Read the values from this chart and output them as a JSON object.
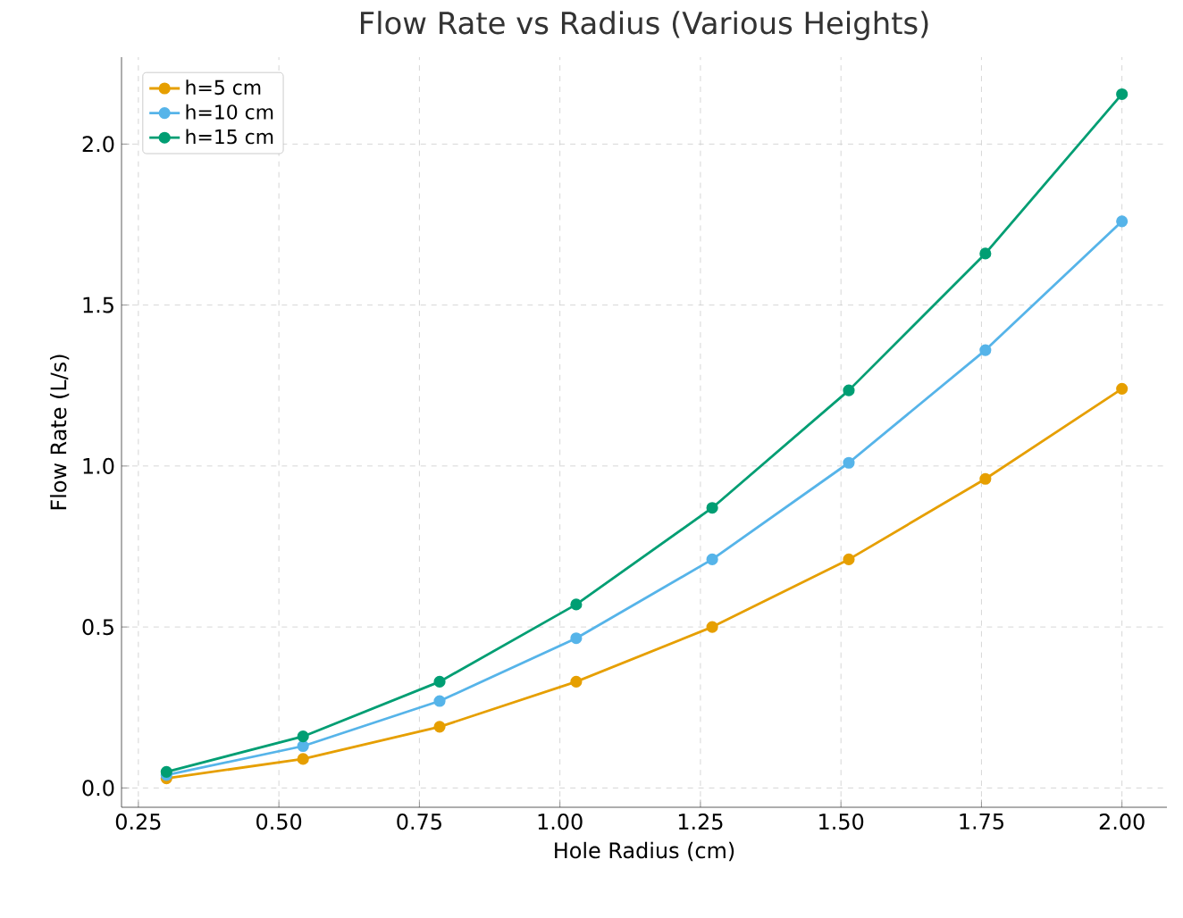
{
  "chart_data": {
    "type": "line",
    "title": "Flow Rate vs Radius (Various Heights)",
    "xlabel": "Hole Radius (cm)",
    "ylabel": "Flow Rate (L/s)",
    "x": [
      0.3,
      0.543,
      0.786,
      1.029,
      1.271,
      1.514,
      1.757,
      2.0
    ],
    "series": [
      {
        "name": "h=5 cm",
        "color": "#e69f00",
        "values": [
          0.03,
          0.09,
          0.19,
          0.33,
          0.5,
          0.71,
          0.96,
          1.24
        ]
      },
      {
        "name": "h=10 cm",
        "color": "#56b4e9",
        "values": [
          0.04,
          0.13,
          0.27,
          0.465,
          0.71,
          1.01,
          1.36,
          1.76
        ]
      },
      {
        "name": "h=15 cm",
        "color": "#009e73",
        "values": [
          0.05,
          0.16,
          0.33,
          0.57,
          0.87,
          1.235,
          1.66,
          2.155
        ]
      }
    ],
    "xlim": [
      0.22,
      2.08
    ],
    "ylim": [
      -0.06,
      2.27
    ],
    "xticks": [
      {
        "value": 0.25,
        "label": "0.25"
      },
      {
        "value": 0.5,
        "label": "0.50"
      },
      {
        "value": 0.75,
        "label": "0.75"
      },
      {
        "value": 1.0,
        "label": "1.00"
      },
      {
        "value": 1.25,
        "label": "1.25"
      },
      {
        "value": 1.5,
        "label": "1.50"
      },
      {
        "value": 1.75,
        "label": "1.75"
      },
      {
        "value": 2.0,
        "label": "2.00"
      }
    ],
    "yticks": [
      {
        "value": 0,
        "label": "0.0"
      },
      {
        "value": 0.5,
        "label": "0.5"
      },
      {
        "value": 1.0,
        "label": "1.0"
      },
      {
        "value": 1.5,
        "label": "1.5"
      },
      {
        "value": 2.0,
        "label": "2.0"
      }
    ],
    "grid": true,
    "legend": "top left",
    "marker": "circle",
    "line_style": "solid"
  }
}
